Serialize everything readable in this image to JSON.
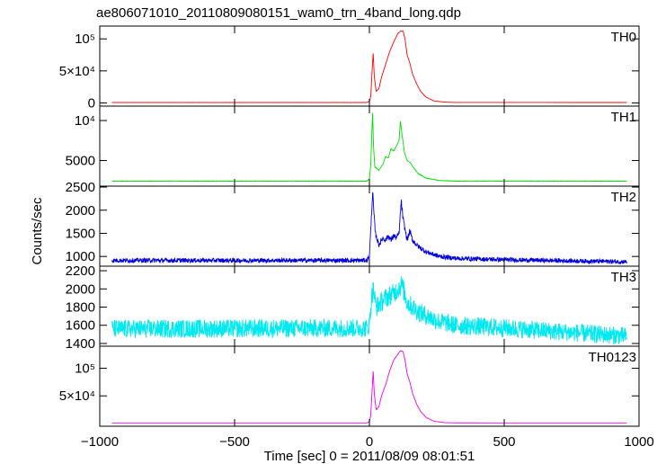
{
  "chart_data": {
    "type": "line",
    "title": "ae806071010_20110809080151_wam0_trn_4band_long.qdp",
    "xlabel": "Time [sec] 0 = 2011/08/09 08:01:51",
    "ylabel": "Counts/sec",
    "xlim": [
      -1000,
      1000
    ],
    "x_ticks": [
      {
        "value": -1000,
        "label": "−1000"
      },
      {
        "value": -500,
        "label": "−500"
      },
      {
        "value": 0,
        "label": "0"
      },
      {
        "value": 500,
        "label": "500"
      },
      {
        "value": 1000,
        "label": "1000"
      }
    ],
    "grid": false,
    "panels": [
      {
        "name": "TH0",
        "color": "#ff0000",
        "ylim": [
          -5000,
          120000
        ],
        "noise": 0.12,
        "yticks": [
          {
            "value": 0,
            "label": "0"
          },
          {
            "value": 50000,
            "label": "5×10⁴"
          },
          {
            "value": 100000,
            "label": "10⁵"
          }
        ],
        "points": [
          [
            -955,
            600
          ],
          [
            -10,
            600
          ],
          [
            0,
            2500
          ],
          [
            5,
            10000
          ],
          [
            10,
            50000
          ],
          [
            14,
            78000
          ],
          [
            18,
            42000
          ],
          [
            25,
            18000
          ],
          [
            35,
            22000
          ],
          [
            45,
            40000
          ],
          [
            60,
            60000
          ],
          [
            75,
            80000
          ],
          [
            90,
            95000
          ],
          [
            105,
            108000
          ],
          [
            115,
            112000
          ],
          [
            125,
            112000
          ],
          [
            132,
            100000
          ],
          [
            140,
            75000
          ],
          [
            150,
            62000
          ],
          [
            160,
            45000
          ],
          [
            175,
            30000
          ],
          [
            190,
            18000
          ],
          [
            210,
            9000
          ],
          [
            240,
            3000
          ],
          [
            280,
            1200
          ],
          [
            320,
            700
          ],
          [
            955,
            600
          ]
        ]
      },
      {
        "name": "TH1",
        "color": "#00dd00",
        "ylim": [
          1800,
          11800
        ],
        "noise": 0.15,
        "yticks": [
          {
            "value": 5000,
            "label": "5000"
          },
          {
            "value": 10000,
            "label": "10⁴"
          }
        ],
        "points": [
          [
            -955,
            2420
          ],
          [
            -10,
            2420
          ],
          [
            0,
            2700
          ],
          [
            5,
            4500
          ],
          [
            9,
            8500
          ],
          [
            12,
            11000
          ],
          [
            15,
            7000
          ],
          [
            20,
            4200
          ],
          [
            35,
            3800
          ],
          [
            50,
            4500
          ],
          [
            60,
            5500
          ],
          [
            70,
            5300
          ],
          [
            80,
            6500
          ],
          [
            90,
            6200
          ],
          [
            100,
            6800
          ],
          [
            110,
            7500
          ],
          [
            115,
            10000
          ],
          [
            120,
            8500
          ],
          [
            130,
            6000
          ],
          [
            140,
            5000
          ],
          [
            150,
            4800
          ],
          [
            160,
            4300
          ],
          [
            180,
            3400
          ],
          [
            210,
            2800
          ],
          [
            260,
            2500
          ],
          [
            320,
            2430
          ],
          [
            955,
            2420
          ]
        ]
      },
      {
        "name": "TH2",
        "color": "#0000dd",
        "ylim": [
          790,
          2520
        ],
        "noise": 0.5,
        "yticks": [
          {
            "value": 1000,
            "label": "1000"
          },
          {
            "value": 1500,
            "label": "1500"
          },
          {
            "value": 2000,
            "label": "2000"
          },
          {
            "value": 2500,
            "label": "2500"
          }
        ],
        "points": [
          [
            -955,
            915
          ],
          [
            -10,
            915
          ],
          [
            0,
            1000
          ],
          [
            6,
            1700
          ],
          [
            12,
            2400
          ],
          [
            16,
            2000
          ],
          [
            22,
            1500
          ],
          [
            35,
            1250
          ],
          [
            50,
            1400
          ],
          [
            60,
            1350
          ],
          [
            70,
            1450
          ],
          [
            80,
            1350
          ],
          [
            90,
            1450
          ],
          [
            100,
            1400
          ],
          [
            110,
            1500
          ],
          [
            118,
            2200
          ],
          [
            125,
            1800
          ],
          [
            140,
            1350
          ],
          [
            150,
            1550
          ],
          [
            160,
            1350
          ],
          [
            180,
            1220
          ],
          [
            210,
            1100
          ],
          [
            260,
            1000
          ],
          [
            320,
            960
          ],
          [
            500,
            930
          ],
          [
            955,
            885
          ]
        ]
      },
      {
        "name": "TH3",
        "color": "#00e8f0",
        "ylim": [
          1370,
          2250
        ],
        "noise": 0.8,
        "yticks": [
          {
            "value": 1400,
            "label": "1400"
          },
          {
            "value": 1600,
            "label": "1600"
          },
          {
            "value": 1800,
            "label": "1800"
          },
          {
            "value": 2000,
            "label": "2000"
          },
          {
            "value": 2200,
            "label": "2200"
          }
        ],
        "points": [
          [
            -955,
            1560
          ],
          [
            -10,
            1570
          ],
          [
            0,
            1600
          ],
          [
            8,
            1900
          ],
          [
            14,
            2000
          ],
          [
            25,
            1800
          ],
          [
            60,
            1900
          ],
          [
            90,
            1950
          ],
          [
            120,
            2050
          ],
          [
            140,
            1850
          ],
          [
            180,
            1750
          ],
          [
            250,
            1650
          ],
          [
            320,
            1600
          ],
          [
            500,
            1570
          ],
          [
            700,
            1530
          ],
          [
            955,
            1480
          ]
        ]
      },
      {
        "name": "TH0123",
        "color": "#ee00ee",
        "ylim": [
          -5000,
          140000
        ],
        "noise": 0.12,
        "yticks": [
          {
            "value": 50000,
            "label": "5×10⁴"
          },
          {
            "value": 100000,
            "label": "10⁵"
          }
        ],
        "points": [
          [
            -955,
            1000
          ],
          [
            -10,
            1000
          ],
          [
            0,
            3000
          ],
          [
            5,
            15000
          ],
          [
            10,
            60000
          ],
          [
            14,
            95000
          ],
          [
            18,
            55000
          ],
          [
            25,
            25000
          ],
          [
            35,
            30000
          ],
          [
            45,
            50000
          ],
          [
            60,
            70000
          ],
          [
            75,
            95000
          ],
          [
            90,
            115000
          ],
          [
            105,
            125000
          ],
          [
            115,
            132000
          ],
          [
            125,
            130000
          ],
          [
            132,
            115000
          ],
          [
            140,
            90000
          ],
          [
            150,
            75000
          ],
          [
            160,
            55000
          ],
          [
            175,
            35000
          ],
          [
            190,
            22000
          ],
          [
            210,
            11000
          ],
          [
            240,
            4000
          ],
          [
            280,
            1500
          ],
          [
            320,
            1100
          ],
          [
            955,
            1000
          ]
        ]
      }
    ]
  }
}
